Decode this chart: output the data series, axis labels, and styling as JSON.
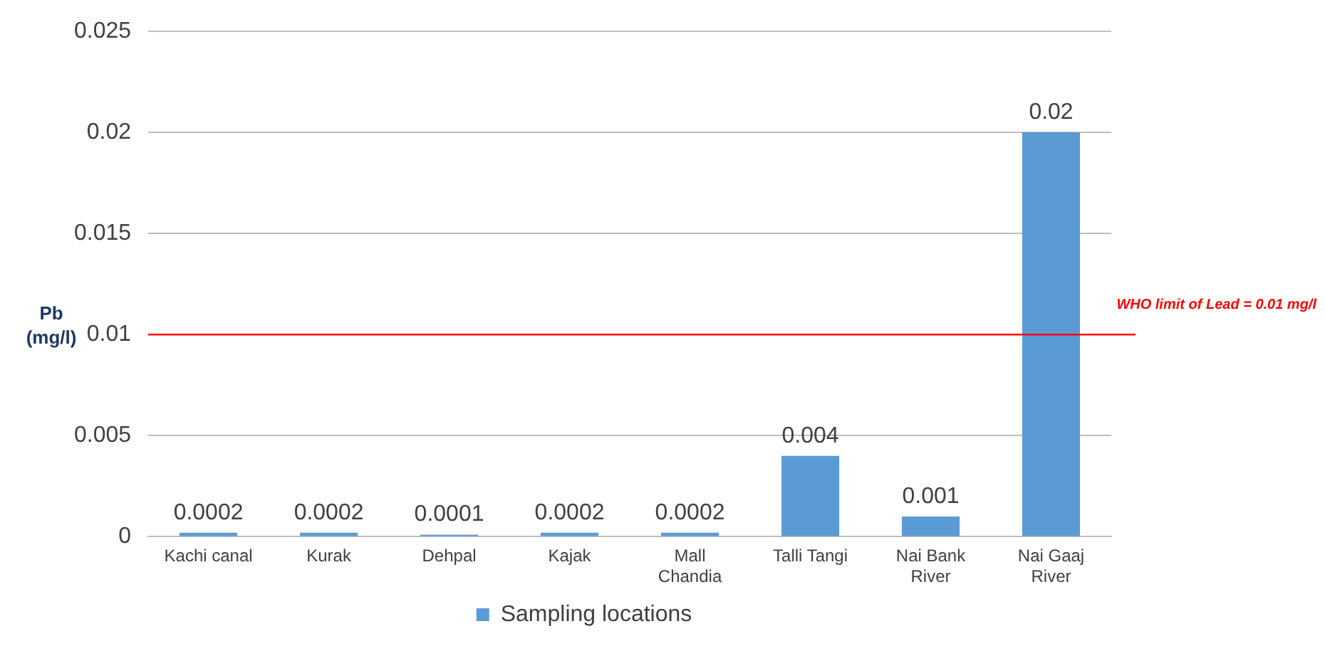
{
  "chart_data": {
    "type": "bar",
    "ylabel": "Pb (mg/l)",
    "categories": [
      "Kachi canal",
      "Kurak",
      "Dehpal",
      "Kajak",
      "Mall Chandia",
      "Talli Tangi",
      "Nai Bank River",
      "Nai Gaaj River"
    ],
    "series": [
      {
        "name": "Sampling locations",
        "color": "#5b9bd5",
        "values": [
          0.0002,
          0.0002,
          0.0001,
          0.0002,
          0.0002,
          0.004,
          0.001,
          0.02
        ]
      }
    ],
    "ylim": [
      0,
      0.025
    ],
    "yticks": [
      0,
      0.005,
      0.01,
      0.015,
      0.02,
      0.025
    ],
    "grid": "y",
    "legend": "bottom",
    "data_labels": true,
    "ref_lines": [
      {
        "axis": "y",
        "value": 0.01,
        "label": "WHO limit of Lead = 0.01 mg/l",
        "color": "#ff0000"
      }
    ]
  }
}
